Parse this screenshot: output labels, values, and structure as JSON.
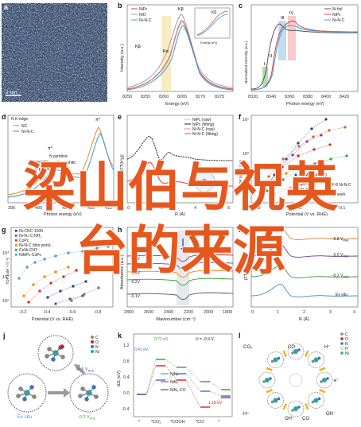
{
  "overlay": {
    "line1": "梁山伯与祝英",
    "line2": "台的来源",
    "color": "#e6571e"
  },
  "panels": {
    "a": {
      "label": "a",
      "scale_bar": "2 nm"
    },
    "b": {
      "label": "b",
      "legend": [
        "NiPc",
        "NiO",
        "Ni-N-C"
      ],
      "peaks": [
        "Kβ",
        "Kα",
        "Kβ"
      ],
      "inset_label": "Kβ",
      "inset_xlabel": "Energy (eV)",
      "xlabel": "Energy (eV)",
      "ylabel": "Intensity (a.u.)",
      "xticks": [
        "8250",
        "8255",
        "8260",
        "8265",
        "8270",
        "8275"
      ]
    },
    "c": {
      "label": "c",
      "legend": [
        "Ni foil",
        "NiPc",
        "Ni-N-C"
      ],
      "features": [
        "I",
        "II",
        "III",
        "IV"
      ],
      "xlabel": "Photon energy (eV)",
      "ylabel": "Normalized intensity (a.u.)",
      "xticks": [
        "8320",
        "8340",
        "8360",
        "8380",
        "8400",
        "8420"
      ]
    },
    "d": {
      "label": "d",
      "title": "N K-edge",
      "legend": [
        "NC",
        "Ni-N-C"
      ],
      "annotations": [
        "π*",
        "π*",
        "N pyridinic",
        "N pyrrolic",
        "N graphitic",
        "N pyridinic"
      ],
      "xlabel": "Photon energy (eV)",
      "xticks": [
        "396",
        "400",
        "404",
        "408",
        "412"
      ]
    },
    "e": {
      "label": "e",
      "legend": [
        "NiPc (raw)",
        "NiPc (fitting)",
        "Ni-N-C (raw)",
        "Ni-N-C (fitting)"
      ],
      "xlabel": "R (Å)",
      "ylabel": "|FT(k³χ)|",
      "xticks": [
        "0",
        "2",
        "4",
        "6"
      ],
      "atom": "Ni"
    },
    "f": {
      "label": "f",
      "ylabel": "TOF (site⁻¹ h⁻¹)",
      "yticks": [
        "10¹",
        "10⁰",
        "10⁻¹"
      ],
      "xlabel": "Potential (V vs. RHE)",
      "xticks": [
        "-0.3",
        "-0.2",
        "-0.1"
      ],
      "legend": [
        "Ni-SAC-DABCO",
        "Ni-N₄-C/CNT",
        "Fe³⁺-N-C",
        "ZIF-8 Ni-N-C",
        "OD-Ag",
        "NiPc",
        "This work"
      ]
    },
    "g": {
      "label": "g",
      "legend": [
        "Ni-CNC-1000",
        "Ni-N₄-C-NH₃",
        "CoPc",
        "Ni-N-C (this work)",
        "CoNi-CNT",
        "NiNPc-CoPc"
      ],
      "ylabel": "TOF (site⁻¹ h⁻¹)",
      "yticks": [
        "10⁴",
        "10³",
        "10²"
      ],
      "xlabel": "Potential (V vs. RHE)",
      "xticks": [
        "-0.2",
        "-0.4",
        "-0.6",
        "-0.8"
      ]
    },
    "h": {
      "label": "h",
      "ylabel": "Absorbance (a.u.)",
      "xlabel": "Wavenumber (cm⁻¹)",
      "xticks": [
        "2800",
        "2600",
        "2400",
        "2200",
        "2000",
        "1800"
      ],
      "labels": [
        "-0.5V",
        "-0.4V",
        "-0.3V",
        "-0.2V",
        "-0.1V"
      ]
    },
    "i": {
      "label": "i",
      "labels": [
        "-0.8 V",
        "-0.5 V",
        "-0.2 V",
        "Ex situ"
      ],
      "vsub": "RHE",
      "xlabel": "R (Å)",
      "ylabel": "|FT(k³χ)|",
      "xticks": [
        "0",
        "1",
        "2",
        "3",
        "4"
      ]
    },
    "j": {
      "label": "j",
      "ex_situ": "Ex situ",
      "state1": "-0.5 V",
      "state2": "-0.2 V",
      "vsub": "RHE",
      "legend": [
        "C",
        "O",
        "N",
        "Ni"
      ]
    },
    "k": {
      "label": "k",
      "ylabel": "ΔG (eV)",
      "yticks": [
        "1.2",
        "0.8",
        "0.4",
        "0.0",
        "-0.4"
      ],
      "potential": "U = -0.9 V",
      "values": [
        "0.41 eV",
        "0.72 eV",
        "1.15 eV"
      ],
      "legend": [
        "NiN₄",
        "NiN₃",
        "NiN₃-CO"
      ],
      "xticks": [
        "*",
        "*CO₂",
        "*COOH",
        "*CO",
        "*"
      ]
    },
    "l": {
      "label": "l",
      "labels": [
        "CO₂",
        "CO",
        "H⁺",
        "e⁻",
        "H⁺",
        "OH⁻",
        "CO",
        "OH⁻"
      ],
      "legend": [
        "C",
        "O",
        "N",
        "H",
        "Ni"
      ]
    }
  },
  "chart_data": [
    {
      "type": "line",
      "title": "",
      "xlabel": "Energy (eV)",
      "ylabel": "Intensity (a.u.)",
      "xlim": [
        8248,
        8276
      ],
      "series": [
        {
          "name": "NiPc"
        },
        {
          "name": "NiO"
        },
        {
          "name": "Ni-N-C"
        }
      ]
    },
    {
      "type": "line",
      "title": "",
      "xlabel": "Photon energy (eV)",
      "ylabel": "Normalized intensity (a.u.)",
      "xlim": [
        8320,
        8420
      ],
      "series": [
        {
          "name": "Ni foil"
        },
        {
          "name": "NiPc"
        },
        {
          "name": "Ni-N-C"
        }
      ]
    },
    {
      "type": "line",
      "title": "N K-edge",
      "xlabel": "Photon energy (eV)",
      "xlim": [
        396,
        412
      ],
      "series": [
        {
          "name": "NC"
        },
        {
          "name": "Ni-N-C"
        }
      ]
    },
    {
      "type": "line",
      "title": "",
      "xlabel": "R (Å)",
      "ylabel": "|FT(k³χ)|",
      "xlim": [
        0,
        6
      ],
      "series": [
        {
          "name": "NiPc (raw)"
        },
        {
          "name": "NiPc (fitting)"
        },
        {
          "name": "Ni-N-C (raw)"
        },
        {
          "name": "Ni-N-C (fitting)"
        }
      ]
    },
    {
      "type": "scatter",
      "title": "",
      "xlabel": "Potential (V vs. RHE)",
      "ylabel": "TOF (site⁻¹ h⁻¹)",
      "series": [
        {
          "name": "This work"
        },
        {
          "name": "NiPc"
        }
      ]
    },
    {
      "type": "scatter",
      "title": "",
      "xlabel": "Potential (V vs. RHE)",
      "ylabel": "TOF (site⁻¹ h⁻¹)",
      "series": [
        {
          "name": "Ni-N-C (this work)"
        },
        {
          "name": "CoPc"
        }
      ]
    },
    {
      "type": "line",
      "title": "",
      "xlabel": "Wavenumber (cm⁻¹)",
      "ylabel": "Absorbance (a.u.)",
      "xlim": [
        2800,
        1800
      ],
      "series": [
        {
          "name": "-0.5V"
        },
        {
          "name": "-0.4V"
        },
        {
          "name": "-0.3V"
        },
        {
          "name": "-0.2V"
        },
        {
          "name": "-0.1V"
        }
      ]
    },
    {
      "type": "line",
      "title": "",
      "xlabel": "R (Å)",
      "ylabel": "|FT(k³χ)|",
      "xlim": [
        0,
        4
      ],
      "series": [
        {
          "name": "-0.8 V"
        },
        {
          "name": "-0.5 V"
        },
        {
          "name": "-0.2 V"
        },
        {
          "name": "Ex situ"
        }
      ]
    },
    {
      "type": "line",
      "title": "",
      "ylabel": "ΔG (eV)",
      "categories": [
        "*",
        "*CO₂",
        "*COOH",
        "*CO",
        "*"
      ],
      "series": [
        {
          "name": "NiN₄"
        },
        {
          "name": "NiN₃"
        },
        {
          "name": "NiN₃-CO"
        }
      ]
    }
  ]
}
